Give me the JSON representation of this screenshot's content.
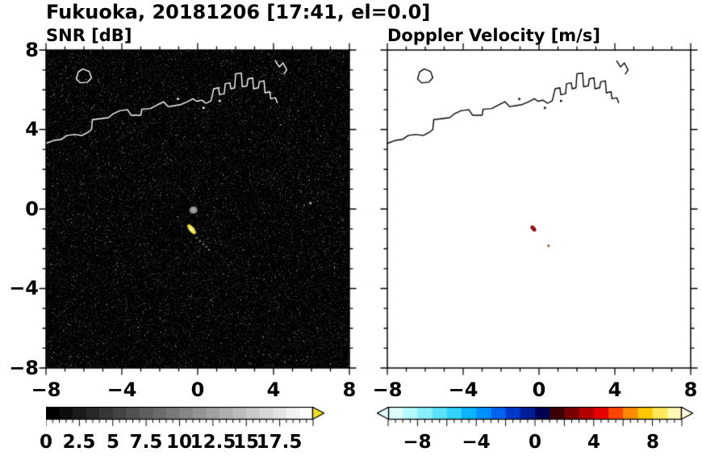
{
  "header": {
    "title": "Fukuoka, 20181206 [17:41, el=0.0]"
  },
  "chart_data": [
    {
      "type": "heatmap",
      "title": "SNR [dB]",
      "xlabel": "",
      "ylabel": "",
      "xlim": [
        -8,
        8
      ],
      "ylim": [
        -8,
        8
      ],
      "xtick_labels": [
        "−8",
        "−4",
        "0",
        "4",
        "8"
      ],
      "ytick_labels": [
        "8",
        "4",
        "0",
        "−4",
        "−8"
      ],
      "grid": false,
      "background": "#000000",
      "coast_color": "#ffffff",
      "noise": true,
      "echoes": [
        {
          "name": "clutter-echo-gray",
          "shape": "ellipse",
          "x": -0.22,
          "y": -0.05,
          "rx": 5,
          "ry": 4.5,
          "angle": 0,
          "color": "#8a8a8a",
          "core": "#ababab"
        },
        {
          "name": "target-echo-yellow",
          "shape": "ellipse",
          "x": -0.32,
          "y": -1.02,
          "rx": 7.5,
          "ry": 3.2,
          "angle": 50,
          "color": "#e8df33",
          "core": "#f8f4a0"
        },
        {
          "name": "echo-trail-gray",
          "shape": "dots",
          "points": [
            [
              -0.05,
              -1.45
            ],
            [
              0.12,
              -1.6
            ],
            [
              0.3,
              -1.78
            ],
            [
              0.45,
              -1.9
            ],
            [
              0.6,
              -2.05
            ]
          ],
          "color": "#6a6a6a"
        },
        {
          "name": "speck-white",
          "shape": "dots",
          "points": [
            [
              5.95,
              0.3
            ]
          ],
          "color": "#d0d0d0"
        }
      ],
      "colorbar": {
        "labels": [
          "0",
          "2.5",
          "5",
          "7.5",
          "10",
          "12.5",
          "15",
          "17.5"
        ],
        "range": [
          0,
          20
        ],
        "minor_step": 0.5,
        "major_step": 2.5,
        "colors": [
          "#000000",
          "#0d0d0d",
          "#1b1b1b",
          "#282828",
          "#363636",
          "#434343",
          "#515151",
          "#5e5e5e",
          "#6b6b6b",
          "#797979",
          "#868686",
          "#949494",
          "#a1a1a1",
          "#afafaf",
          "#bcbcbc",
          "#c9c9c9",
          "#d7d7d7",
          "#e4e4e4",
          "#f2f2f2",
          "#ffffff"
        ],
        "arrow_left": null,
        "arrow_right": "#f2df2a"
      }
    },
    {
      "type": "heatmap",
      "title": "Doppler Velocity [m/s]",
      "xlabel": "",
      "ylabel": "",
      "xlim": [
        -8,
        8
      ],
      "ylim": [
        -8,
        8
      ],
      "xtick_labels": [
        "−8",
        "−4",
        "0",
        "4",
        "8"
      ],
      "ytick_labels": [],
      "grid": false,
      "background": "#ffffff",
      "coast_color": "#000000",
      "noise": false,
      "echoes": [
        {
          "name": "velocity-echo-dark-red",
          "shape": "ellipse",
          "x": -0.3,
          "y": -0.98,
          "rx": 4.5,
          "ry": 2.6,
          "angle": 50,
          "color": "#8c1010"
        },
        {
          "name": "velocity-speck-red",
          "shape": "dots",
          "points": [
            [
              0.5,
              -1.85
            ]
          ],
          "color": "#a01818"
        }
      ],
      "colorbar": {
        "labels": [
          "−8",
          "−4",
          "0",
          "4",
          "8"
        ],
        "range": [
          -10,
          10
        ],
        "minor_step": 0.5,
        "major_step": 2,
        "colors": [
          "#e0ffff",
          "#b4fbff",
          "#86f0ff",
          "#5ce2ff",
          "#32d2ff",
          "#0ab4ff",
          "#0090ff",
          "#0064f0",
          "#0038c8",
          "#001e96",
          "#000050",
          "#3c0000",
          "#780000",
          "#b40000",
          "#e60000",
          "#ff4600",
          "#ff8c00",
          "#ffc800",
          "#ffe95a",
          "#fff7b4"
        ],
        "arrow_left": "#e4feff",
        "arrow_right": "#fffce0"
      }
    }
  ],
  "coastline": {
    "lines": [
      [
        [
          -8,
          3.3
        ],
        [
          -7.6,
          3.45
        ],
        [
          -7.2,
          3.5
        ],
        [
          -6.9,
          3.7
        ],
        [
          -6.5,
          3.75
        ],
        [
          -6.1,
          3.7
        ],
        [
          -5.8,
          3.85
        ],
        [
          -5.6,
          4.0
        ],
        [
          -5.55,
          4.5
        ],
        [
          -5.1,
          4.55
        ],
        [
          -4.7,
          4.6
        ],
        [
          -4.45,
          4.8
        ],
        [
          -4.1,
          4.95
        ],
        [
          -3.7,
          5.0
        ],
        [
          -3.5,
          4.72
        ],
        [
          -3.0,
          4.72
        ],
        [
          -2.95,
          5.02
        ],
        [
          -2.5,
          5.05
        ],
        [
          -2.1,
          5.25
        ],
        [
          -1.8,
          5.4
        ],
        [
          -1.55,
          5.15
        ],
        [
          -1.25,
          5.2
        ],
        [
          -0.9,
          5.25
        ],
        [
          -0.55,
          5.4
        ],
        [
          -0.25,
          5.55
        ],
        [
          -0.05,
          5.42
        ],
        [
          0.2,
          5.48
        ],
        [
          0.45,
          5.32
        ],
        [
          0.7,
          5.45
        ],
        [
          0.85,
          6.05
        ],
        [
          1.1,
          6.1
        ],
        [
          1.15,
          5.75
        ],
        [
          1.4,
          5.8
        ],
        [
          1.45,
          6.3
        ],
        [
          1.7,
          6.35
        ],
        [
          1.75,
          6.05
        ],
        [
          1.95,
          6.1
        ],
        [
          2.0,
          6.8
        ],
        [
          2.3,
          6.85
        ],
        [
          2.35,
          6.15
        ],
        [
          2.6,
          6.2
        ],
        [
          2.65,
          6.55
        ],
        [
          2.9,
          6.6
        ],
        [
          2.95,
          6.05
        ],
        [
          3.2,
          6.1
        ],
        [
          3.25,
          6.4
        ],
        [
          3.5,
          6.45
        ],
        [
          3.55,
          5.85
        ],
        [
          3.8,
          5.9
        ],
        [
          3.85,
          5.55
        ],
        [
          4.1,
          5.6
        ],
        [
          4.2,
          5.35
        ]
      ],
      [
        [
          4.1,
          7.45
        ],
        [
          4.3,
          7.15
        ],
        [
          4.5,
          7.35
        ],
        [
          4.7,
          7.0
        ],
        [
          4.55,
          6.8
        ]
      ]
    ],
    "islands": [
      [
        [
          -6.4,
          6.55
        ],
        [
          -6.3,
          6.9
        ],
        [
          -6.05,
          7.05
        ],
        [
          -5.72,
          6.92
        ],
        [
          -5.6,
          6.6
        ],
        [
          -5.82,
          6.38
        ],
        [
          -6.2,
          6.35
        ]
      ]
    ],
    "dots": [
      [
        0.3,
        5.1
      ],
      [
        -1.05,
        5.55
      ],
      [
        1.15,
        5.45
      ]
    ]
  }
}
